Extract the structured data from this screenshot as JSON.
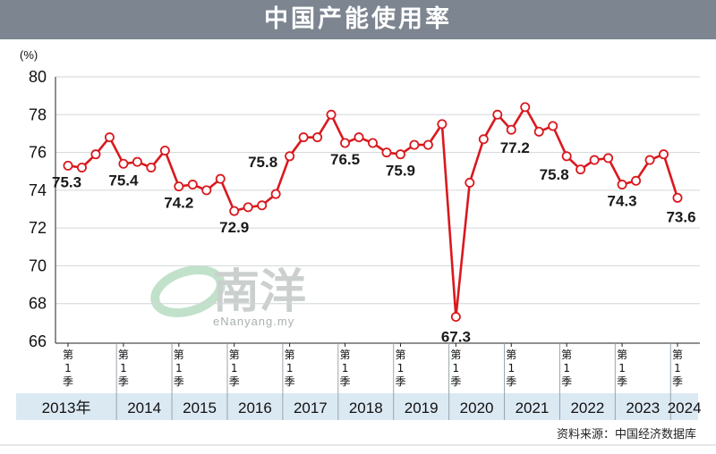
{
  "title": "中国产能使用率",
  "chart_data": {
    "type": "line",
    "ylabel": "(%)",
    "ylim": [
      66,
      80
    ],
    "yticks": [
      66,
      68,
      70,
      72,
      74,
      76,
      78,
      80
    ],
    "years": [
      "2013年",
      "2014",
      "2015",
      "2016",
      "2017",
      "2018",
      "2019",
      "2020",
      "2021",
      "2022",
      "2023",
      "2024"
    ],
    "quarter_marker": [
      "第",
      "1",
      "季"
    ],
    "series": [
      {
        "values": [
          75.3,
          75.2,
          75.9,
          76.8,
          75.4,
          75.5,
          75.2,
          76.1,
          74.2,
          74.3,
          74.0,
          74.6,
          72.9,
          73.1,
          73.2,
          73.8,
          75.8,
          76.8,
          76.8,
          78.0,
          76.5,
          76.8,
          76.5,
          76.0,
          75.9,
          76.4,
          76.4,
          77.5,
          67.3,
          74.4,
          76.7,
          78.0,
          77.2,
          78.4,
          77.1,
          77.4,
          75.8,
          75.1,
          75.6,
          75.7,
          74.3,
          74.5,
          75.6,
          75.9,
          73.6
        ]
      }
    ],
    "data_labels": [
      {
        "index": 0,
        "text": "75.3"
      },
      {
        "index": 4,
        "text": "75.4"
      },
      {
        "index": 8,
        "text": "74.2"
      },
      {
        "index": 12,
        "text": "72.9"
      },
      {
        "index": 16,
        "text": "75.8"
      },
      {
        "index": 20,
        "text": "76.5"
      },
      {
        "index": 24,
        "text": "75.9"
      },
      {
        "index": 28,
        "text": "67.3"
      },
      {
        "index": 32,
        "text": "77.2"
      },
      {
        "index": 36,
        "text": "75.8"
      },
      {
        "index": 40,
        "text": "74.3"
      },
      {
        "index": 44,
        "text": "73.6"
      }
    ],
    "line_color": "#d9191f",
    "marker_fill": "#ffffff",
    "grid": true,
    "source": "资料来源：中国经济数据库",
    "watermark": {
      "brand": "南洋",
      "url": "eNanyang.my"
    }
  }
}
